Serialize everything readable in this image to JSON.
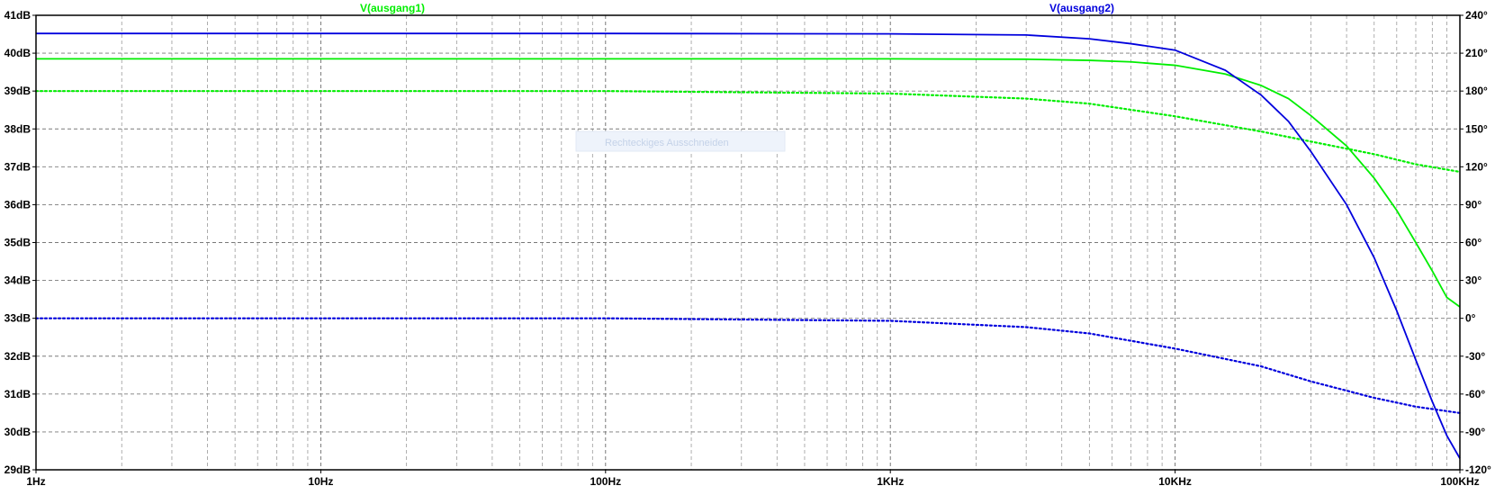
{
  "chart_data": {
    "type": "line",
    "x_scale": "log",
    "xlim_hz": [
      1,
      100000
    ],
    "x_tick_labels": [
      "1Hz",
      "10Hz",
      "100Hz",
      "1KHz",
      "10KHz",
      "100KHz"
    ],
    "left_axis": {
      "unit": "dB",
      "ylim": [
        29,
        41
      ],
      "tick_labels": [
        "41dB",
        "40dB",
        "39dB",
        "38dB",
        "37dB",
        "36dB",
        "35dB",
        "34dB",
        "33dB",
        "32dB",
        "31dB",
        "30dB",
        "29dB"
      ]
    },
    "right_axis": {
      "unit": "°",
      "ylim": [
        -120,
        240
      ],
      "tick_labels": [
        "240°",
        "210°",
        "180°",
        "150°",
        "120°",
        "90°",
        "60°",
        "30°",
        "0°",
        "-30°",
        "-60°",
        "-90°",
        "-120°"
      ]
    },
    "grid": true,
    "series": [
      {
        "name": "V(ausgang1)",
        "color": "#00ee00",
        "magnitude_db": [
          [
            1,
            39.85
          ],
          [
            100,
            39.85
          ],
          [
            1000,
            39.85
          ],
          [
            3000,
            39.84
          ],
          [
            5000,
            39.81
          ],
          [
            7000,
            39.77
          ],
          [
            10000,
            39.68
          ],
          [
            15000,
            39.45
          ],
          [
            20000,
            39.15
          ],
          [
            25000,
            38.8
          ],
          [
            30000,
            38.35
          ],
          [
            40000,
            37.55
          ],
          [
            50000,
            36.7
          ],
          [
            60000,
            35.85
          ],
          [
            70000,
            35.0
          ],
          [
            80000,
            34.25
          ],
          [
            90000,
            33.55
          ],
          [
            100000,
            33.3
          ]
        ],
        "phase_deg": [
          [
            1,
            180
          ],
          [
            100,
            180
          ],
          [
            1000,
            178
          ],
          [
            3000,
            174
          ],
          [
            5000,
            170
          ],
          [
            10000,
            160
          ],
          [
            20000,
            148
          ],
          [
            30000,
            140
          ],
          [
            50000,
            130
          ],
          [
            70000,
            122
          ],
          [
            100000,
            116
          ]
        ]
      },
      {
        "name": "V(ausgang2)",
        "color": "#0000dd",
        "magnitude_db": [
          [
            1,
            40.52
          ],
          [
            100,
            40.52
          ],
          [
            1000,
            40.51
          ],
          [
            3000,
            40.48
          ],
          [
            5000,
            40.38
          ],
          [
            7000,
            40.25
          ],
          [
            10000,
            40.08
          ],
          [
            15000,
            39.55
          ],
          [
            20000,
            38.9
          ],
          [
            25000,
            38.2
          ],
          [
            30000,
            37.4
          ],
          [
            40000,
            36.0
          ],
          [
            50000,
            34.6
          ],
          [
            60000,
            33.2
          ],
          [
            70000,
            31.9
          ],
          [
            80000,
            30.8
          ],
          [
            90000,
            29.9
          ],
          [
            100000,
            29.3
          ]
        ],
        "phase_deg": [
          [
            1,
            0
          ],
          [
            100,
            0
          ],
          [
            1000,
            -2
          ],
          [
            3000,
            -7
          ],
          [
            5000,
            -12
          ],
          [
            10000,
            -24
          ],
          [
            20000,
            -38
          ],
          [
            30000,
            -50
          ],
          [
            50000,
            -63
          ],
          [
            70000,
            -70
          ],
          [
            100000,
            -75
          ]
        ]
      }
    ]
  },
  "overlay_text": "Rechteckiges Ausschneiden"
}
